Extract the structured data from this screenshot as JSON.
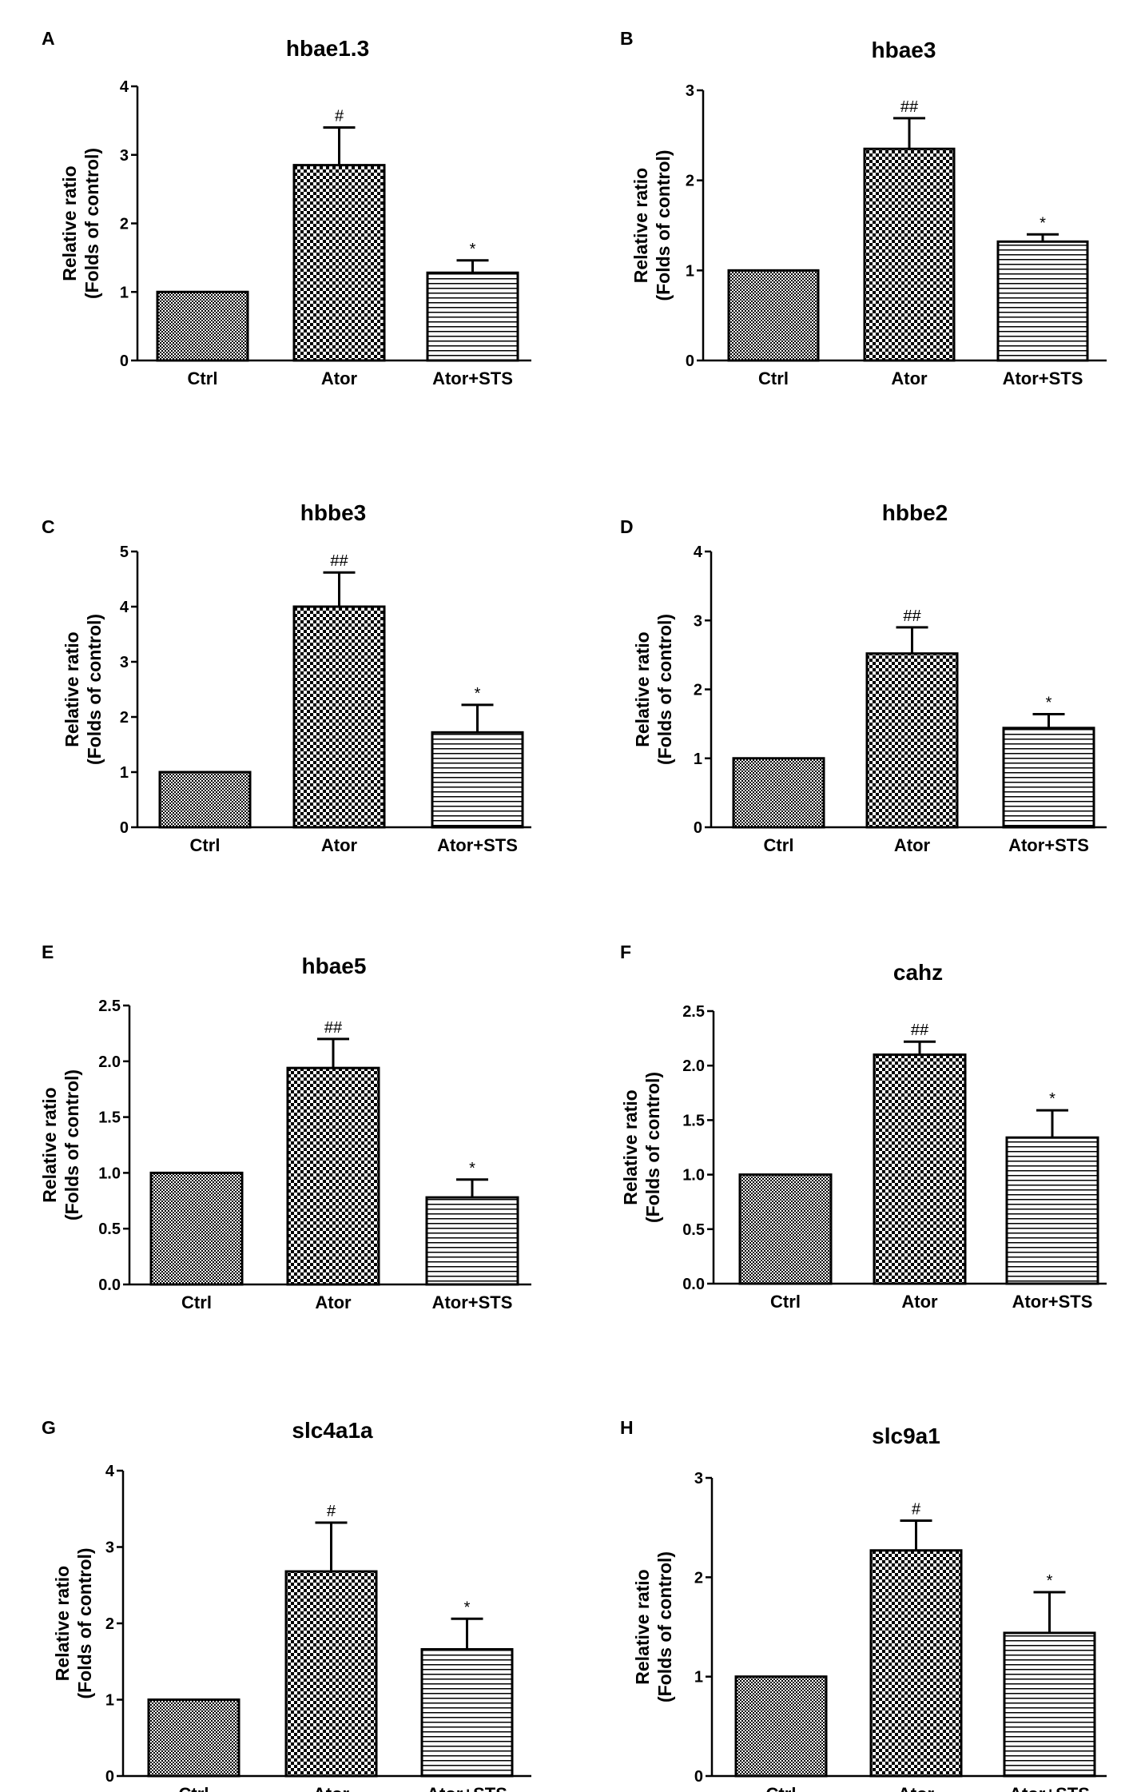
{
  "figure": {
    "ylabel_line1": "Relative ratio",
    "ylabel_line2": "(Folds of control)"
  },
  "chart_data": [
    {
      "panel": "A",
      "type": "bar",
      "title": "hbae1.3",
      "categories": [
        "Ctrl",
        "Ator",
        "Ator+STS"
      ],
      "values": [
        1.0,
        2.85,
        1.28
      ],
      "errors": [
        0.0,
        0.55,
        0.18
      ],
      "significance": [
        "",
        "#",
        "*"
      ],
      "ylim": [
        0,
        4
      ],
      "yticks": [
        "0",
        "1",
        "2",
        "3",
        "4"
      ],
      "patterns": [
        "fine-dots",
        "checker",
        "horizontal-lines"
      ]
    },
    {
      "panel": "B",
      "type": "bar",
      "title": "hbae3",
      "categories": [
        "Ctrl",
        "Ator",
        "Ator+STS"
      ],
      "values": [
        1.0,
        2.35,
        1.32
      ],
      "errors": [
        0.0,
        0.34,
        0.08
      ],
      "significance": [
        "",
        "##",
        "*"
      ],
      "ylim": [
        0,
        3
      ],
      "yticks": [
        "0",
        "1",
        "2",
        "3"
      ],
      "patterns": [
        "fine-dots",
        "checker",
        "horizontal-lines"
      ]
    },
    {
      "panel": "C",
      "type": "bar",
      "title": "hbbe3",
      "categories": [
        "Ctrl",
        "Ator",
        "Ator+STS"
      ],
      "values": [
        1.0,
        4.0,
        1.72
      ],
      "errors": [
        0.0,
        0.62,
        0.5
      ],
      "significance": [
        "",
        "##",
        "*"
      ],
      "ylim": [
        0,
        5
      ],
      "yticks": [
        "0",
        "1",
        "2",
        "3",
        "4",
        "5"
      ],
      "patterns": [
        "fine-dots",
        "checker",
        "horizontal-lines"
      ]
    },
    {
      "panel": "D",
      "type": "bar",
      "title": "hbbe2",
      "categories": [
        "Ctrl",
        "Ator",
        "Ator+STS"
      ],
      "values": [
        1.0,
        2.52,
        1.44
      ],
      "errors": [
        0.0,
        0.38,
        0.2
      ],
      "significance": [
        "",
        "##",
        "*"
      ],
      "ylim": [
        0,
        4
      ],
      "yticks": [
        "0",
        "1",
        "2",
        "3",
        "4"
      ],
      "patterns": [
        "fine-dots",
        "checker",
        "horizontal-lines"
      ]
    },
    {
      "panel": "E",
      "type": "bar",
      "title": "hbae5",
      "categories": [
        "Ctrl",
        "Ator",
        "Ator+STS"
      ],
      "values": [
        1.0,
        1.94,
        0.78
      ],
      "errors": [
        0.0,
        0.26,
        0.16
      ],
      "significance": [
        "",
        "##",
        "*"
      ],
      "ylim": [
        0,
        2.5
      ],
      "yticks": [
        "0.0",
        "0.5",
        "1.0",
        "1.5",
        "2.0",
        "2.5"
      ],
      "patterns": [
        "fine-dots",
        "checker",
        "horizontal-lines"
      ]
    },
    {
      "panel": "F",
      "type": "bar",
      "title": "cahz",
      "categories": [
        "Ctrl",
        "Ator",
        "Ator+STS"
      ],
      "values": [
        1.0,
        2.1,
        1.34
      ],
      "errors": [
        0.0,
        0.12,
        0.25
      ],
      "significance": [
        "",
        "##",
        "*"
      ],
      "ylim": [
        0,
        2.5
      ],
      "yticks": [
        "0.0",
        "0.5",
        "1.0",
        "1.5",
        "2.0",
        "2.5"
      ],
      "patterns": [
        "fine-dots",
        "checker",
        "horizontal-lines"
      ]
    },
    {
      "panel": "G",
      "type": "bar",
      "title": "slc4a1a",
      "categories": [
        "Ctrl",
        "Ator",
        "Ator+STS"
      ],
      "values": [
        1.0,
        2.68,
        1.66
      ],
      "errors": [
        0.0,
        0.64,
        0.4
      ],
      "significance": [
        "",
        "#",
        "*"
      ],
      "ylim": [
        0,
        4
      ],
      "yticks": [
        "0",
        "1",
        "2",
        "3",
        "4"
      ],
      "patterns": [
        "fine-dots",
        "checker",
        "horizontal-lines"
      ]
    },
    {
      "panel": "H",
      "type": "bar",
      "title": "slc9a1",
      "categories": [
        "Ctrl",
        "Ator",
        "Ator+STS"
      ],
      "values": [
        1.0,
        2.27,
        1.44
      ],
      "errors": [
        0.0,
        0.3,
        0.41
      ],
      "significance": [
        "",
        "#",
        "*"
      ],
      "ylim": [
        0,
        3
      ],
      "yticks": [
        "0",
        "1",
        "2",
        "3"
      ],
      "patterns": [
        "fine-dots",
        "checker",
        "horizontal-lines"
      ]
    }
  ]
}
